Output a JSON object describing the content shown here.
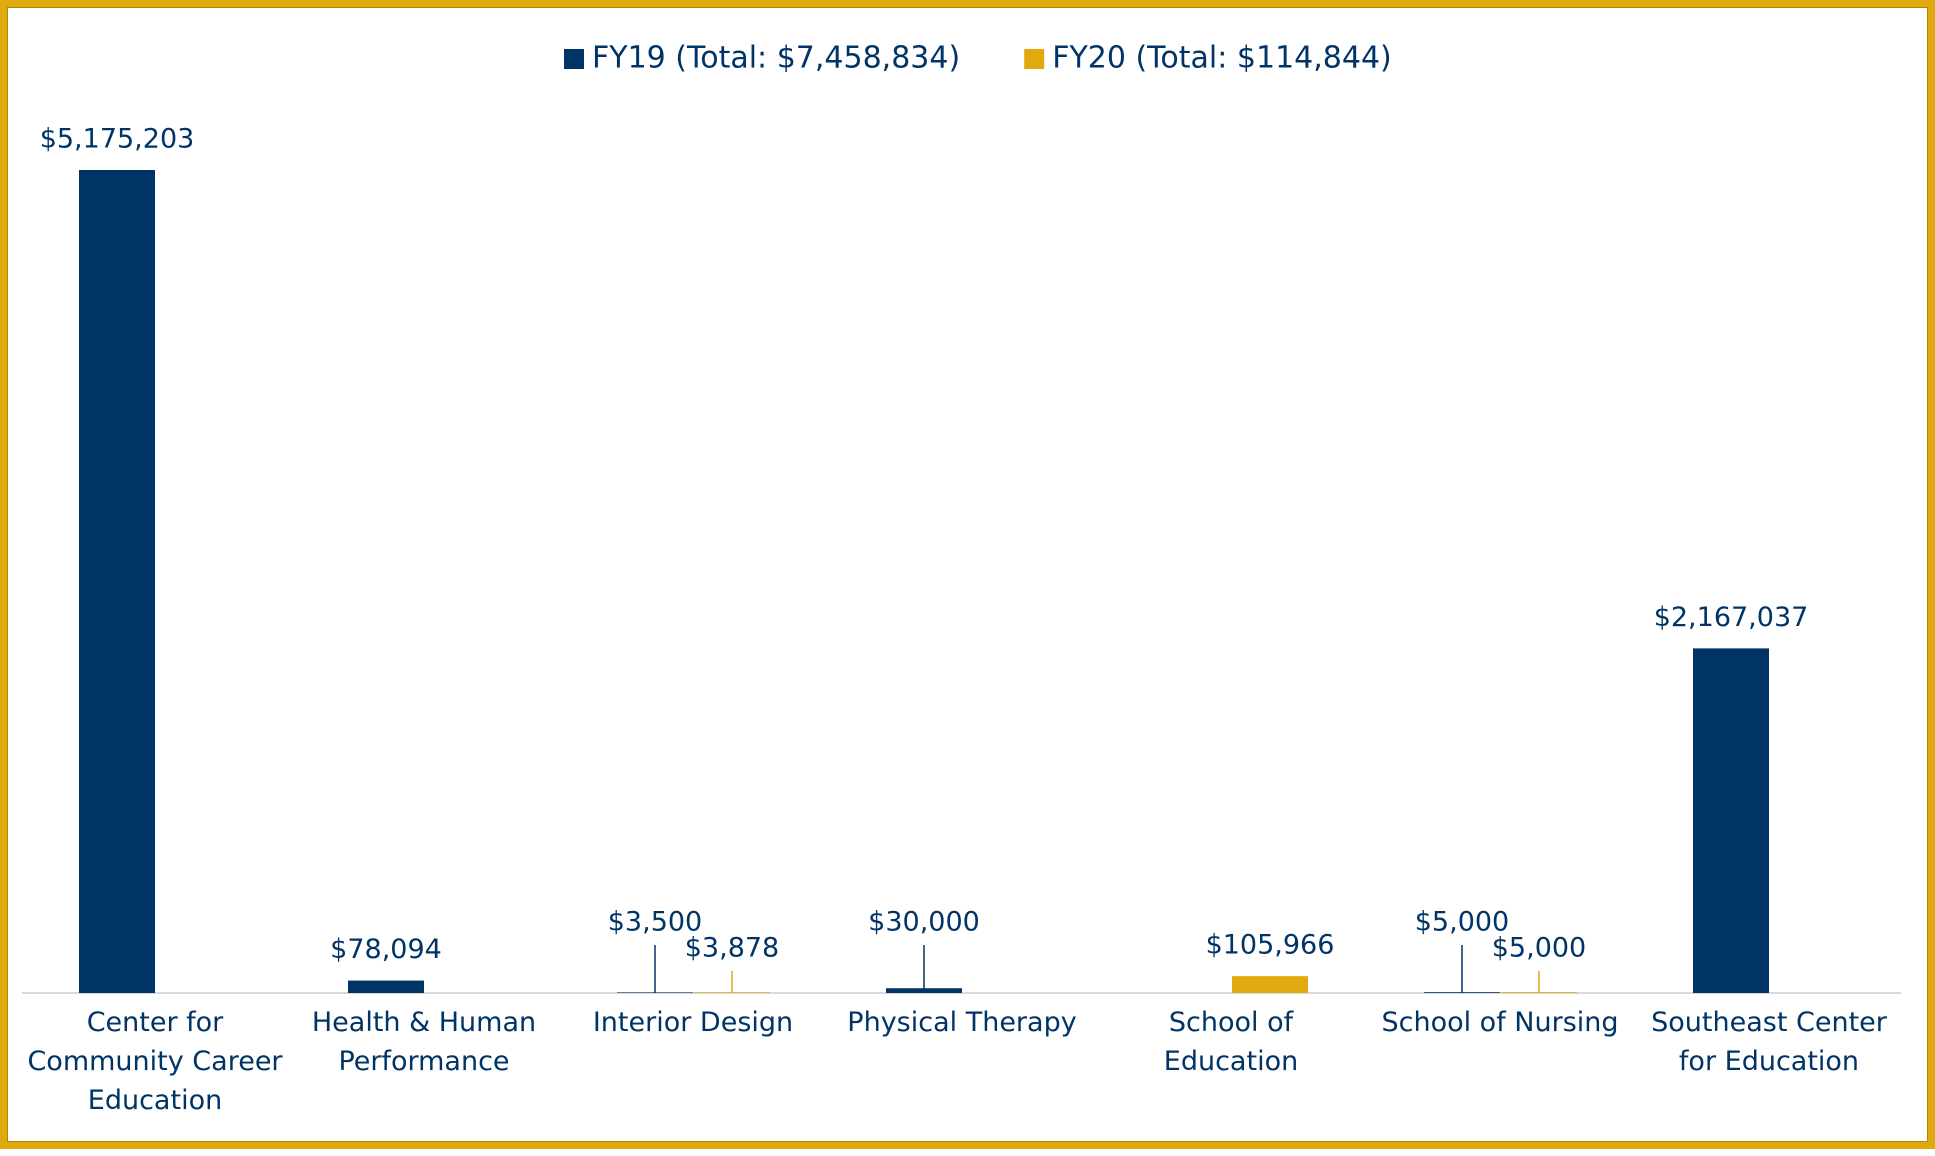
{
  "chart_data": {
    "type": "bar",
    "categories": [
      "Center for Community Career Education",
      "Health & Human Performance",
      "Interior Design",
      "Physical Therapy",
      "School of Education",
      "School of Nursing",
      "Southeast Center for Education"
    ],
    "series": [
      {
        "name": "FY19 (Total: $7,458,834)",
        "color": "#003366",
        "values": [
          5175203,
          78094,
          3500,
          30000,
          null,
          5000,
          2167037
        ],
        "value_labels": [
          "$5,175,203",
          "$78,094",
          "$3,500",
          "$30,000",
          null,
          "$5,000",
          "$2,167,037"
        ]
      },
      {
        "name": "FY20 (Total: $114,844)",
        "color": "#e1a910",
        "values": [
          null,
          null,
          3878,
          null,
          105966,
          5000,
          null
        ],
        "value_labels": [
          null,
          null,
          "$3,878",
          null,
          "$105,966",
          "$5,000",
          null
        ]
      }
    ],
    "legend": "top"
  }
}
